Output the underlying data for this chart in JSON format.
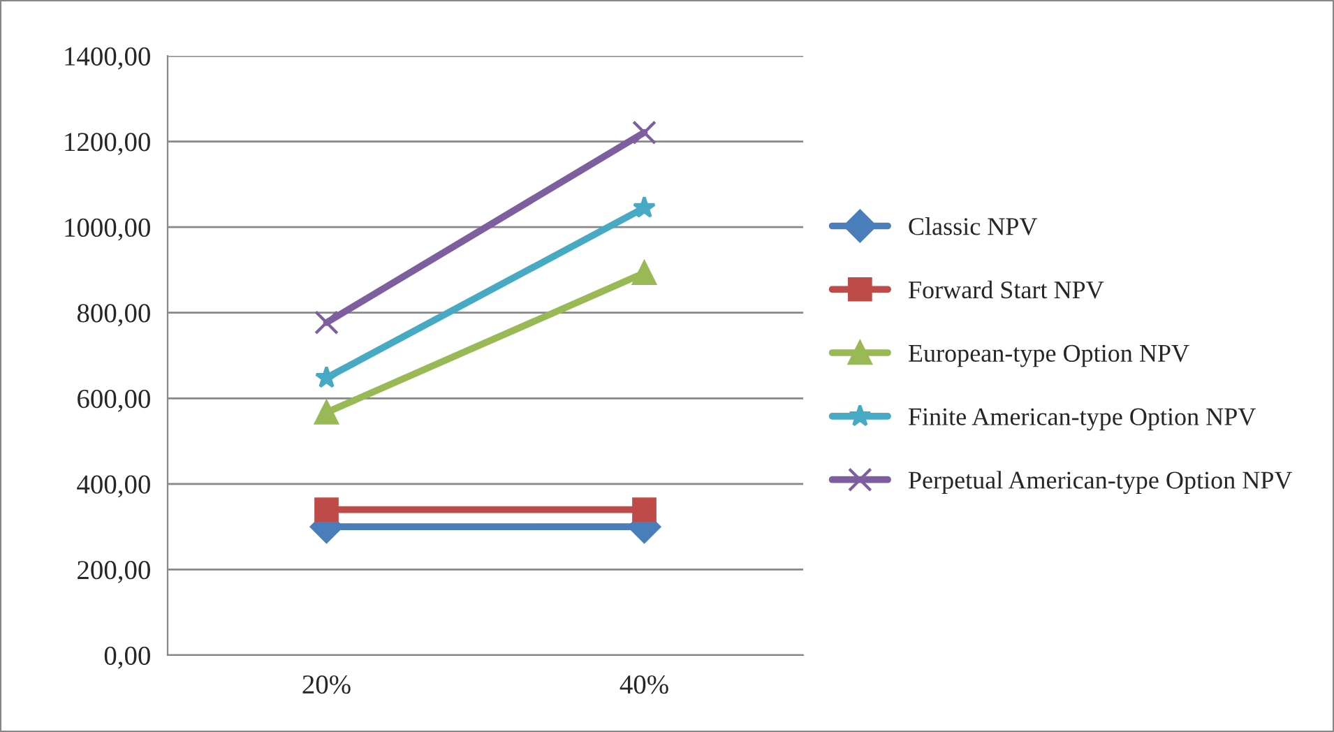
{
  "chart_data": {
    "type": "line",
    "categories": [
      "20%",
      "40%"
    ],
    "series": [
      {
        "name": "Classic NPV",
        "color": "#4a7ebb",
        "marker": "diamond",
        "values": [
          300,
          300
        ]
      },
      {
        "name": "Forward Start NPV",
        "color": "#be4b48",
        "marker": "square",
        "values": [
          340,
          340
        ]
      },
      {
        "name": "European-type Option NPV",
        "color": "#98b954",
        "marker": "triangle",
        "values": [
          567,
          893
        ]
      },
      {
        "name": "Finite American-type Option NPV",
        "color": "#46aac5",
        "marker": "star",
        "values": [
          648,
          1045
        ]
      },
      {
        "name": "Perpetual American-type Option NPV",
        "color": "#7d5fa0",
        "marker": "cross",
        "values": [
          777,
          1221
        ]
      }
    ],
    "ylim": [
      0,
      1400
    ],
    "yticks": [
      {
        "value": 0,
        "label": "0,00"
      },
      {
        "value": 200,
        "label": "200,00"
      },
      {
        "value": 400,
        "label": "400,00"
      },
      {
        "value": 600,
        "label": "600,00"
      },
      {
        "value": 800,
        "label": "800,00"
      },
      {
        "value": 1000,
        "label": "1000,00"
      },
      {
        "value": 1200,
        "label": "1200,00"
      },
      {
        "value": 1400,
        "label": "1400,00"
      }
    ],
    "grid": "y",
    "legend": "right",
    "line_style": "solid"
  }
}
